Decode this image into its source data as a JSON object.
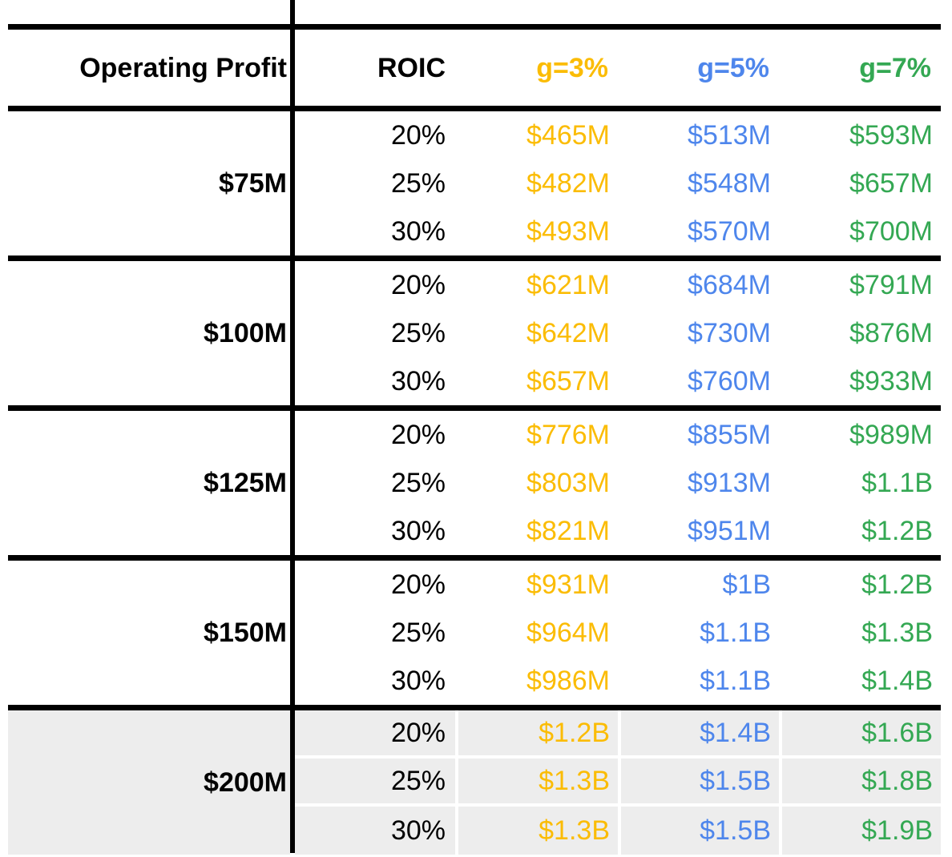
{
  "chart_data": {
    "type": "table",
    "columns": [
      "Operating Profit",
      "ROIC",
      "g=3%",
      "g=5%",
      "g=7%"
    ],
    "growth_columns": [
      {
        "key": "g3",
        "label": "g=3%",
        "color": "#FBBC04"
      },
      {
        "key": "g5",
        "label": "g=5%",
        "color": "#4E86EC"
      },
      {
        "key": "g7",
        "label": "g=7%",
        "color": "#34A853"
      }
    ],
    "roic_values": [
      "20%",
      "25%",
      "30%"
    ],
    "highlight_color": "#EDEDED",
    "separator_color": "#FFFFFF",
    "groups": [
      {
        "label": "$75M",
        "highlighted": false,
        "rows": [
          {
            "roic": "20%",
            "g3": "$465M",
            "g5": "$513M",
            "g7": "$593M"
          },
          {
            "roic": "25%",
            "g3": "$482M",
            "g5": "$548M",
            "g7": "$657M"
          },
          {
            "roic": "30%",
            "g3": "$493M",
            "g5": "$570M",
            "g7": "$700M"
          }
        ]
      },
      {
        "label": "$100M",
        "highlighted": false,
        "rows": [
          {
            "roic": "20%",
            "g3": "$621M",
            "g5": "$684M",
            "g7": "$791M"
          },
          {
            "roic": "25%",
            "g3": "$642M",
            "g5": "$730M",
            "g7": "$876M"
          },
          {
            "roic": "30%",
            "g3": "$657M",
            "g5": "$760M",
            "g7": "$933M"
          }
        ]
      },
      {
        "label": "$125M",
        "highlighted": false,
        "rows": [
          {
            "roic": "20%",
            "g3": "$776M",
            "g5": "$855M",
            "g7": "$989M"
          },
          {
            "roic": "25%",
            "g3": "$803M",
            "g5": "$913M",
            "g7": "$1.1B"
          },
          {
            "roic": "30%",
            "g3": "$821M",
            "g5": "$951M",
            "g7": "$1.2B"
          }
        ]
      },
      {
        "label": "$150M",
        "highlighted": false,
        "rows": [
          {
            "roic": "20%",
            "g3": "$931M",
            "g5": "$1B",
            "g7": "$1.2B"
          },
          {
            "roic": "25%",
            "g3": "$964M",
            "g5": "$1.1B",
            "g7": "$1.3B"
          },
          {
            "roic": "30%",
            "g3": "$986M",
            "g5": "$1.1B",
            "g7": "$1.4B"
          }
        ]
      },
      {
        "label": "$200M",
        "highlighted": true,
        "rows": [
          {
            "roic": "20%",
            "g3": "$1.2B",
            "g5": "$1.4B",
            "g7": "$1.6B"
          },
          {
            "roic": "25%",
            "g3": "$1.3B",
            "g5": "$1.5B",
            "g7": "$1.8B"
          },
          {
            "roic": "30%",
            "g3": "$1.3B",
            "g5": "$1.5B",
            "g7": "$1.9B"
          }
        ]
      }
    ]
  }
}
